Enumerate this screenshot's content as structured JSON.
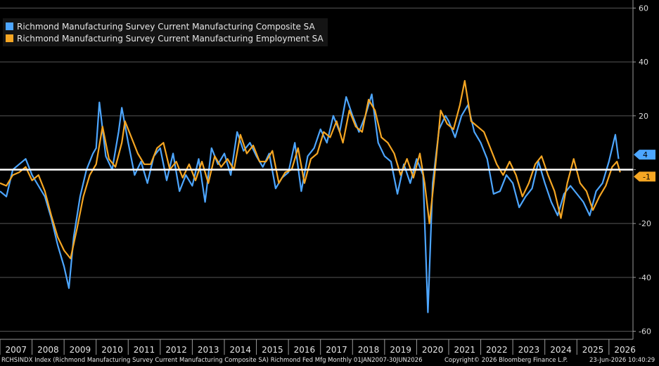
{
  "chart_data": {
    "type": "line",
    "title": "",
    "xlabel": "",
    "ylabel": "",
    "ylim": [
      -63,
      63
    ],
    "y_ticks": [
      60,
      40,
      20,
      0,
      -20,
      -40,
      -60
    ],
    "y_tick_labels": [
      "60",
      "40",
      "20",
      "",
      "-20",
      "-40",
      "-60"
    ],
    "x_ticks": [
      "2007",
      "2008",
      "2009",
      "2010",
      "2011",
      "2012",
      "2013",
      "2014",
      "2015",
      "2016",
      "2017",
      "2018",
      "2019",
      "2020",
      "2021",
      "2022",
      "2023",
      "2024",
      "2025",
      "2026"
    ],
    "grid": true,
    "legend_position": "top-left",
    "reference_line": 0,
    "series": [
      {
        "name": "Richmond Manufacturing Survey Current Manufacturing Composite SA",
        "color": "#4da6ff",
        "last_value_label": "4",
        "values": [
          [
            2007.0,
            -8
          ],
          [
            2007.2,
            -10
          ],
          [
            2007.4,
            0
          ],
          [
            2007.6,
            2
          ],
          [
            2007.8,
            4
          ],
          [
            2008.0,
            -2
          ],
          [
            2008.2,
            -6
          ],
          [
            2008.4,
            -10
          ],
          [
            2008.6,
            -18
          ],
          [
            2008.8,
            -28
          ],
          [
            2009.0,
            -36
          ],
          [
            2009.15,
            -44
          ],
          [
            2009.3,
            -25
          ],
          [
            2009.5,
            -10
          ],
          [
            2009.7,
            0
          ],
          [
            2009.9,
            6
          ],
          [
            2010.0,
            8
          ],
          [
            2010.1,
            25
          ],
          [
            2010.3,
            5
          ],
          [
            2010.5,
            0
          ],
          [
            2010.7,
            14
          ],
          [
            2010.8,
            23
          ],
          [
            2011.0,
            10
          ],
          [
            2011.2,
            -2
          ],
          [
            2011.4,
            3
          ],
          [
            2011.6,
            -5
          ],
          [
            2011.8,
            5
          ],
          [
            2012.0,
            8
          ],
          [
            2012.2,
            -4
          ],
          [
            2012.4,
            6
          ],
          [
            2012.6,
            -8
          ],
          [
            2012.8,
            -2
          ],
          [
            2013.0,
            -6
          ],
          [
            2013.2,
            4
          ],
          [
            2013.4,
            -12
          ],
          [
            2013.6,
            8
          ],
          [
            2013.8,
            2
          ],
          [
            2014.0,
            6
          ],
          [
            2014.2,
            -2
          ],
          [
            2014.4,
            14
          ],
          [
            2014.6,
            7
          ],
          [
            2014.8,
            10
          ],
          [
            2015.0,
            5
          ],
          [
            2015.2,
            1
          ],
          [
            2015.4,
            6
          ],
          [
            2015.6,
            -7
          ],
          [
            2015.8,
            -3
          ],
          [
            2016.0,
            -1
          ],
          [
            2016.2,
            10
          ],
          [
            2016.4,
            -8
          ],
          [
            2016.6,
            5
          ],
          [
            2016.8,
            8
          ],
          [
            2017.0,
            15
          ],
          [
            2017.2,
            10
          ],
          [
            2017.4,
            20
          ],
          [
            2017.6,
            14
          ],
          [
            2017.8,
            27
          ],
          [
            2018.0,
            20
          ],
          [
            2018.2,
            14
          ],
          [
            2018.4,
            20
          ],
          [
            2018.6,
            28
          ],
          [
            2018.8,
            10
          ],
          [
            2019.0,
            5
          ],
          [
            2019.2,
            3
          ],
          [
            2019.4,
            -9
          ],
          [
            2019.6,
            2
          ],
          [
            2019.8,
            -5
          ],
          [
            2020.0,
            4
          ],
          [
            2020.2,
            -2
          ],
          [
            2020.35,
            -53
          ],
          [
            2020.5,
            -5
          ],
          [
            2020.7,
            15
          ],
          [
            2020.9,
            20
          ],
          [
            2021.0,
            18
          ],
          [
            2021.2,
            12
          ],
          [
            2021.4,
            20
          ],
          [
            2021.6,
            24
          ],
          [
            2021.8,
            14
          ],
          [
            2022.0,
            10
          ],
          [
            2022.2,
            4
          ],
          [
            2022.4,
            -9
          ],
          [
            2022.6,
            -8
          ],
          [
            2022.8,
            -2
          ],
          [
            2023.0,
            -5
          ],
          [
            2023.2,
            -14
          ],
          [
            2023.4,
            -10
          ],
          [
            2023.6,
            -7
          ],
          [
            2023.8,
            3
          ],
          [
            2024.0,
            -5
          ],
          [
            2024.2,
            -12
          ],
          [
            2024.4,
            -17
          ],
          [
            2024.6,
            -9
          ],
          [
            2024.8,
            -6
          ],
          [
            2025.0,
            -9
          ],
          [
            2025.2,
            -12
          ],
          [
            2025.4,
            -17
          ],
          [
            2025.6,
            -8
          ],
          [
            2025.8,
            -5
          ],
          [
            2026.0,
            3
          ],
          [
            2026.2,
            13
          ],
          [
            2026.3,
            4
          ]
        ]
      },
      {
        "name": "Richmond Manufacturing Survey Current Manufacturing Employment SA",
        "color": "#f5a623",
        "last_value_label": "-1",
        "values": [
          [
            2007.0,
            -5
          ],
          [
            2007.2,
            -6
          ],
          [
            2007.4,
            -2
          ],
          [
            2007.6,
            -1
          ],
          [
            2007.8,
            1
          ],
          [
            2008.0,
            -4
          ],
          [
            2008.2,
            -2
          ],
          [
            2008.4,
            -8
          ],
          [
            2008.6,
            -17
          ],
          [
            2008.8,
            -25
          ],
          [
            2009.0,
            -30
          ],
          [
            2009.2,
            -33
          ],
          [
            2009.4,
            -22
          ],
          [
            2009.6,
            -10
          ],
          [
            2009.8,
            -2
          ],
          [
            2010.0,
            2
          ],
          [
            2010.2,
            16
          ],
          [
            2010.4,
            4
          ],
          [
            2010.6,
            1
          ],
          [
            2010.8,
            10
          ],
          [
            2010.9,
            18
          ],
          [
            2011.1,
            12
          ],
          [
            2011.3,
            6
          ],
          [
            2011.5,
            2
          ],
          [
            2011.7,
            2
          ],
          [
            2011.9,
            8
          ],
          [
            2012.1,
            10
          ],
          [
            2012.3,
            0
          ],
          [
            2012.5,
            3
          ],
          [
            2012.7,
            -3
          ],
          [
            2012.9,
            2
          ],
          [
            2013.1,
            -4
          ],
          [
            2013.3,
            3
          ],
          [
            2013.5,
            -5
          ],
          [
            2013.7,
            5
          ],
          [
            2013.9,
            1
          ],
          [
            2014.1,
            4
          ],
          [
            2014.3,
            0
          ],
          [
            2014.5,
            13
          ],
          [
            2014.7,
            6
          ],
          [
            2014.9,
            9
          ],
          [
            2015.1,
            3
          ],
          [
            2015.3,
            3
          ],
          [
            2015.5,
            7
          ],
          [
            2015.7,
            -5
          ],
          [
            2015.9,
            -1
          ],
          [
            2016.1,
            0
          ],
          [
            2016.3,
            8
          ],
          [
            2016.5,
            -5
          ],
          [
            2016.7,
            4
          ],
          [
            2016.9,
            6
          ],
          [
            2017.1,
            14
          ],
          [
            2017.3,
            12
          ],
          [
            2017.5,
            18
          ],
          [
            2017.7,
            10
          ],
          [
            2017.9,
            22
          ],
          [
            2018.1,
            16
          ],
          [
            2018.3,
            14
          ],
          [
            2018.5,
            26
          ],
          [
            2018.7,
            22
          ],
          [
            2018.9,
            12
          ],
          [
            2019.1,
            10
          ],
          [
            2019.3,
            6
          ],
          [
            2019.5,
            -2
          ],
          [
            2019.7,
            4
          ],
          [
            2019.9,
            -3
          ],
          [
            2020.1,
            6
          ],
          [
            2020.25,
            -5
          ],
          [
            2020.4,
            -20
          ],
          [
            2020.55,
            -3
          ],
          [
            2020.75,
            22
          ],
          [
            2020.95,
            17
          ],
          [
            2021.15,
            15
          ],
          [
            2021.35,
            24
          ],
          [
            2021.5,
            33
          ],
          [
            2021.7,
            18
          ],
          [
            2021.9,
            16
          ],
          [
            2022.1,
            14
          ],
          [
            2022.3,
            8
          ],
          [
            2022.5,
            2
          ],
          [
            2022.7,
            -2
          ],
          [
            2022.9,
            3
          ],
          [
            2023.1,
            -2
          ],
          [
            2023.3,
            -10
          ],
          [
            2023.5,
            -5
          ],
          [
            2023.7,
            2
          ],
          [
            2023.9,
            5
          ],
          [
            2024.1,
            -2
          ],
          [
            2024.3,
            -8
          ],
          [
            2024.5,
            -18
          ],
          [
            2024.7,
            -5
          ],
          [
            2024.9,
            4
          ],
          [
            2025.1,
            -5
          ],
          [
            2025.3,
            -8
          ],
          [
            2025.5,
            -15
          ],
          [
            2025.7,
            -10
          ],
          [
            2025.9,
            -6
          ],
          [
            2026.1,
            1
          ],
          [
            2026.25,
            3
          ],
          [
            2026.35,
            -1
          ]
        ]
      }
    ]
  },
  "footer": {
    "left": "RCHSINDX Index (Richmond Manufacturing Survey Current Manufacturing Composite SA) Richmond Fed Mfg Monthly 01JAN2007-30JUN2026",
    "copyright": "Copyright© 2026 Bloomberg Finance L.P.",
    "timestamp": "23-Jun-2026 10:40:29"
  }
}
